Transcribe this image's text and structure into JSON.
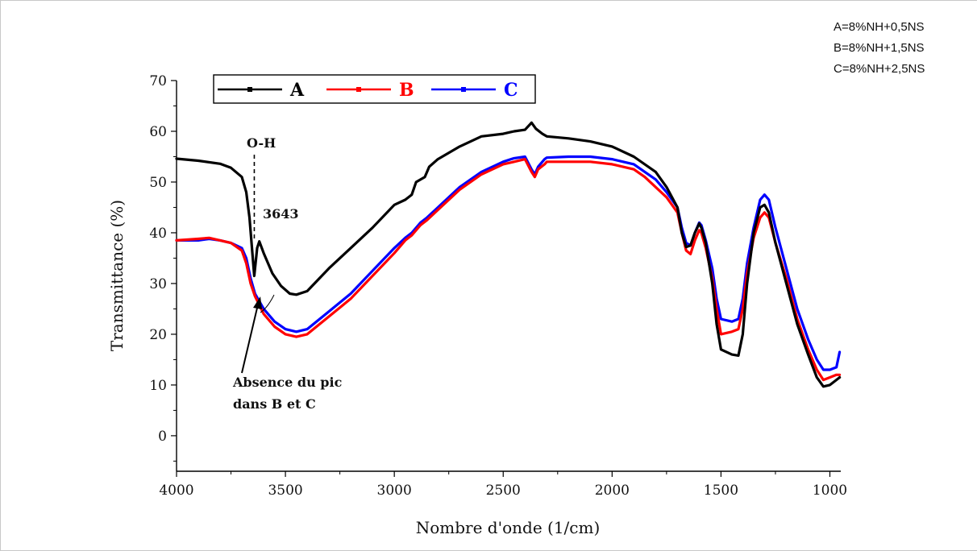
{
  "chart_data": {
    "type": "line",
    "xlabel": "Nombre d'onde (1/cm)",
    "ylabel": "Transmittance (%)",
    "xlim": [
      4000,
      950
    ],
    "ylim": [
      -7,
      70
    ],
    "x_reversed": true,
    "x_ticks": [
      4000,
      3500,
      3000,
      2500,
      2000,
      1500,
      1000
    ],
    "y_ticks": [
      0,
      10,
      20,
      30,
      40,
      50,
      60,
      70
    ],
    "grid": false,
    "legend_position": "top-left",
    "series": [
      {
        "name": "A",
        "color": "#000000",
        "points": [
          [
            4000,
            54.6
          ],
          [
            3900,
            54.2
          ],
          [
            3800,
            53.6
          ],
          [
            3750,
            52.8
          ],
          [
            3700,
            51.0
          ],
          [
            3680,
            48.0
          ],
          [
            3665,
            43.0
          ],
          [
            3650,
            35.0
          ],
          [
            3643,
            31.5
          ],
          [
            3630,
            37.0
          ],
          [
            3620,
            38.3
          ],
          [
            3600,
            36.0
          ],
          [
            3560,
            32.0
          ],
          [
            3520,
            29.5
          ],
          [
            3480,
            28.0
          ],
          [
            3450,
            27.8
          ],
          [
            3400,
            28.5
          ],
          [
            3300,
            33.0
          ],
          [
            3200,
            37.0
          ],
          [
            3100,
            41.0
          ],
          [
            3000,
            45.5
          ],
          [
            2950,
            46.5
          ],
          [
            2920,
            47.5
          ],
          [
            2900,
            50.0
          ],
          [
            2860,
            51.0
          ],
          [
            2840,
            53.0
          ],
          [
            2800,
            54.5
          ],
          [
            2700,
            57.0
          ],
          [
            2600,
            59.0
          ],
          [
            2500,
            59.5
          ],
          [
            2450,
            60.0
          ],
          [
            2400,
            60.3
          ],
          [
            2370,
            61.7
          ],
          [
            2350,
            60.5
          ],
          [
            2320,
            59.5
          ],
          [
            2300,
            59.0
          ],
          [
            2200,
            58.6
          ],
          [
            2100,
            58.0
          ],
          [
            2000,
            57.0
          ],
          [
            1900,
            55.0
          ],
          [
            1800,
            52.0
          ],
          [
            1750,
            49.0
          ],
          [
            1700,
            45.0
          ],
          [
            1680,
            40.0
          ],
          [
            1660,
            37.2
          ],
          [
            1640,
            37.5
          ],
          [
            1620,
            40.0
          ],
          [
            1600,
            41.8
          ],
          [
            1590,
            41.0
          ],
          [
            1570,
            38.0
          ],
          [
            1540,
            30.0
          ],
          [
            1520,
            22.0
          ],
          [
            1500,
            17.0
          ],
          [
            1450,
            16.0
          ],
          [
            1420,
            15.8
          ],
          [
            1400,
            20.0
          ],
          [
            1380,
            30.0
          ],
          [
            1350,
            40.0
          ],
          [
            1320,
            45.0
          ],
          [
            1300,
            45.5
          ],
          [
            1280,
            44.0
          ],
          [
            1250,
            38.0
          ],
          [
            1200,
            30.0
          ],
          [
            1150,
            22.0
          ],
          [
            1100,
            16.0
          ],
          [
            1060,
            11.5
          ],
          [
            1030,
            9.7
          ],
          [
            1000,
            10.0
          ],
          [
            970,
            11.0
          ],
          [
            955,
            11.5
          ]
        ]
      },
      {
        "name": "B",
        "color": "#ff0000",
        "points": [
          [
            4000,
            38.5
          ],
          [
            3900,
            38.8
          ],
          [
            3850,
            39.0
          ],
          [
            3800,
            38.5
          ],
          [
            3750,
            38.0
          ],
          [
            3700,
            36.5
          ],
          [
            3680,
            34.0
          ],
          [
            3660,
            30.0
          ],
          [
            3640,
            27.5
          ],
          [
            3600,
            24.0
          ],
          [
            3550,
            21.5
          ],
          [
            3500,
            20.0
          ],
          [
            3450,
            19.5
          ],
          [
            3400,
            20.0
          ],
          [
            3300,
            23.5
          ],
          [
            3200,
            27.0
          ],
          [
            3100,
            31.5
          ],
          [
            3000,
            36.0
          ],
          [
            2950,
            38.5
          ],
          [
            2920,
            39.5
          ],
          [
            2880,
            41.5
          ],
          [
            2850,
            42.5
          ],
          [
            2800,
            44.5
          ],
          [
            2700,
            48.5
          ],
          [
            2600,
            51.5
          ],
          [
            2500,
            53.5
          ],
          [
            2450,
            54.0
          ],
          [
            2400,
            54.5
          ],
          [
            2370,
            52.0
          ],
          [
            2355,
            51.0
          ],
          [
            2340,
            52.5
          ],
          [
            2310,
            53.5
          ],
          [
            2300,
            54.0
          ],
          [
            2200,
            54.0
          ],
          [
            2100,
            54.0
          ],
          [
            2000,
            53.5
          ],
          [
            1900,
            52.5
          ],
          [
            1850,
            51.0
          ],
          [
            1800,
            49.0
          ],
          [
            1750,
            47.0
          ],
          [
            1700,
            44.0
          ],
          [
            1680,
            40.0
          ],
          [
            1660,
            36.5
          ],
          [
            1640,
            35.8
          ],
          [
            1620,
            38.5
          ],
          [
            1600,
            40.5
          ],
          [
            1590,
            40.0
          ],
          [
            1570,
            37.0
          ],
          [
            1540,
            31.0
          ],
          [
            1520,
            25.0
          ],
          [
            1500,
            20.0
          ],
          [
            1450,
            20.5
          ],
          [
            1420,
            21.0
          ],
          [
            1400,
            25.0
          ],
          [
            1380,
            32.0
          ],
          [
            1350,
            39.0
          ],
          [
            1320,
            43.0
          ],
          [
            1300,
            44.0
          ],
          [
            1280,
            43.0
          ],
          [
            1250,
            38.0
          ],
          [
            1200,
            31.0
          ],
          [
            1150,
            23.0
          ],
          [
            1100,
            17.0
          ],
          [
            1060,
            13.0
          ],
          [
            1030,
            11.0
          ],
          [
            1000,
            11.5
          ],
          [
            970,
            12.0
          ],
          [
            955,
            12.0
          ]
        ]
      },
      {
        "name": "C",
        "color": "#0000ff",
        "points": [
          [
            4000,
            38.5
          ],
          [
            3900,
            38.5
          ],
          [
            3850,
            38.8
          ],
          [
            3800,
            38.5
          ],
          [
            3750,
            38.0
          ],
          [
            3700,
            37.0
          ],
          [
            3680,
            35.0
          ],
          [
            3660,
            31.0
          ],
          [
            3640,
            28.0
          ],
          [
            3600,
            25.0
          ],
          [
            3550,
            22.5
          ],
          [
            3500,
            21.0
          ],
          [
            3450,
            20.5
          ],
          [
            3400,
            21.0
          ],
          [
            3300,
            24.5
          ],
          [
            3200,
            28.0
          ],
          [
            3100,
            32.5
          ],
          [
            3000,
            37.0
          ],
          [
            2950,
            39.0
          ],
          [
            2920,
            40.0
          ],
          [
            2880,
            42.0
          ],
          [
            2850,
            43.0
          ],
          [
            2800,
            45.0
          ],
          [
            2700,
            49.0
          ],
          [
            2600,
            52.0
          ],
          [
            2500,
            54.0
          ],
          [
            2450,
            54.7
          ],
          [
            2400,
            55.0
          ],
          [
            2370,
            52.5
          ],
          [
            2355,
            51.5
          ],
          [
            2340,
            53.0
          ],
          [
            2310,
            54.5
          ],
          [
            2300,
            54.8
          ],
          [
            2200,
            55.0
          ],
          [
            2100,
            55.0
          ],
          [
            2000,
            54.5
          ],
          [
            1900,
            53.5
          ],
          [
            1850,
            52.0
          ],
          [
            1800,
            50.5
          ],
          [
            1750,
            48.0
          ],
          [
            1700,
            45.0
          ],
          [
            1680,
            41.0
          ],
          [
            1660,
            38.0
          ],
          [
            1640,
            37.5
          ],
          [
            1620,
            40.0
          ],
          [
            1600,
            42.0
          ],
          [
            1590,
            41.5
          ],
          [
            1570,
            38.5
          ],
          [
            1540,
            33.0
          ],
          [
            1520,
            27.0
          ],
          [
            1500,
            23.0
          ],
          [
            1450,
            22.5
          ],
          [
            1420,
            23.0
          ],
          [
            1400,
            27.0
          ],
          [
            1380,
            34.0
          ],
          [
            1350,
            41.0
          ],
          [
            1320,
            46.5
          ],
          [
            1300,
            47.5
          ],
          [
            1280,
            46.5
          ],
          [
            1250,
            41.0
          ],
          [
            1200,
            33.0
          ],
          [
            1150,
            25.0
          ],
          [
            1100,
            19.0
          ],
          [
            1060,
            15.0
          ],
          [
            1030,
            13.0
          ],
          [
            1000,
            13.0
          ],
          [
            970,
            13.5
          ],
          [
            955,
            16.5
          ]
        ]
      }
    ],
    "annotations": {
      "oh_label": "O-H",
      "oh_wavenumber_label": "3643",
      "oh_line_x": 3643,
      "absence_line1": "Absence du pic",
      "absence_line2": "dans B et C"
    },
    "compositions": [
      "A=8%NH+0,5NS",
      "B=8%NH+1,5NS",
      "C=8%NH+2,5NS"
    ]
  }
}
